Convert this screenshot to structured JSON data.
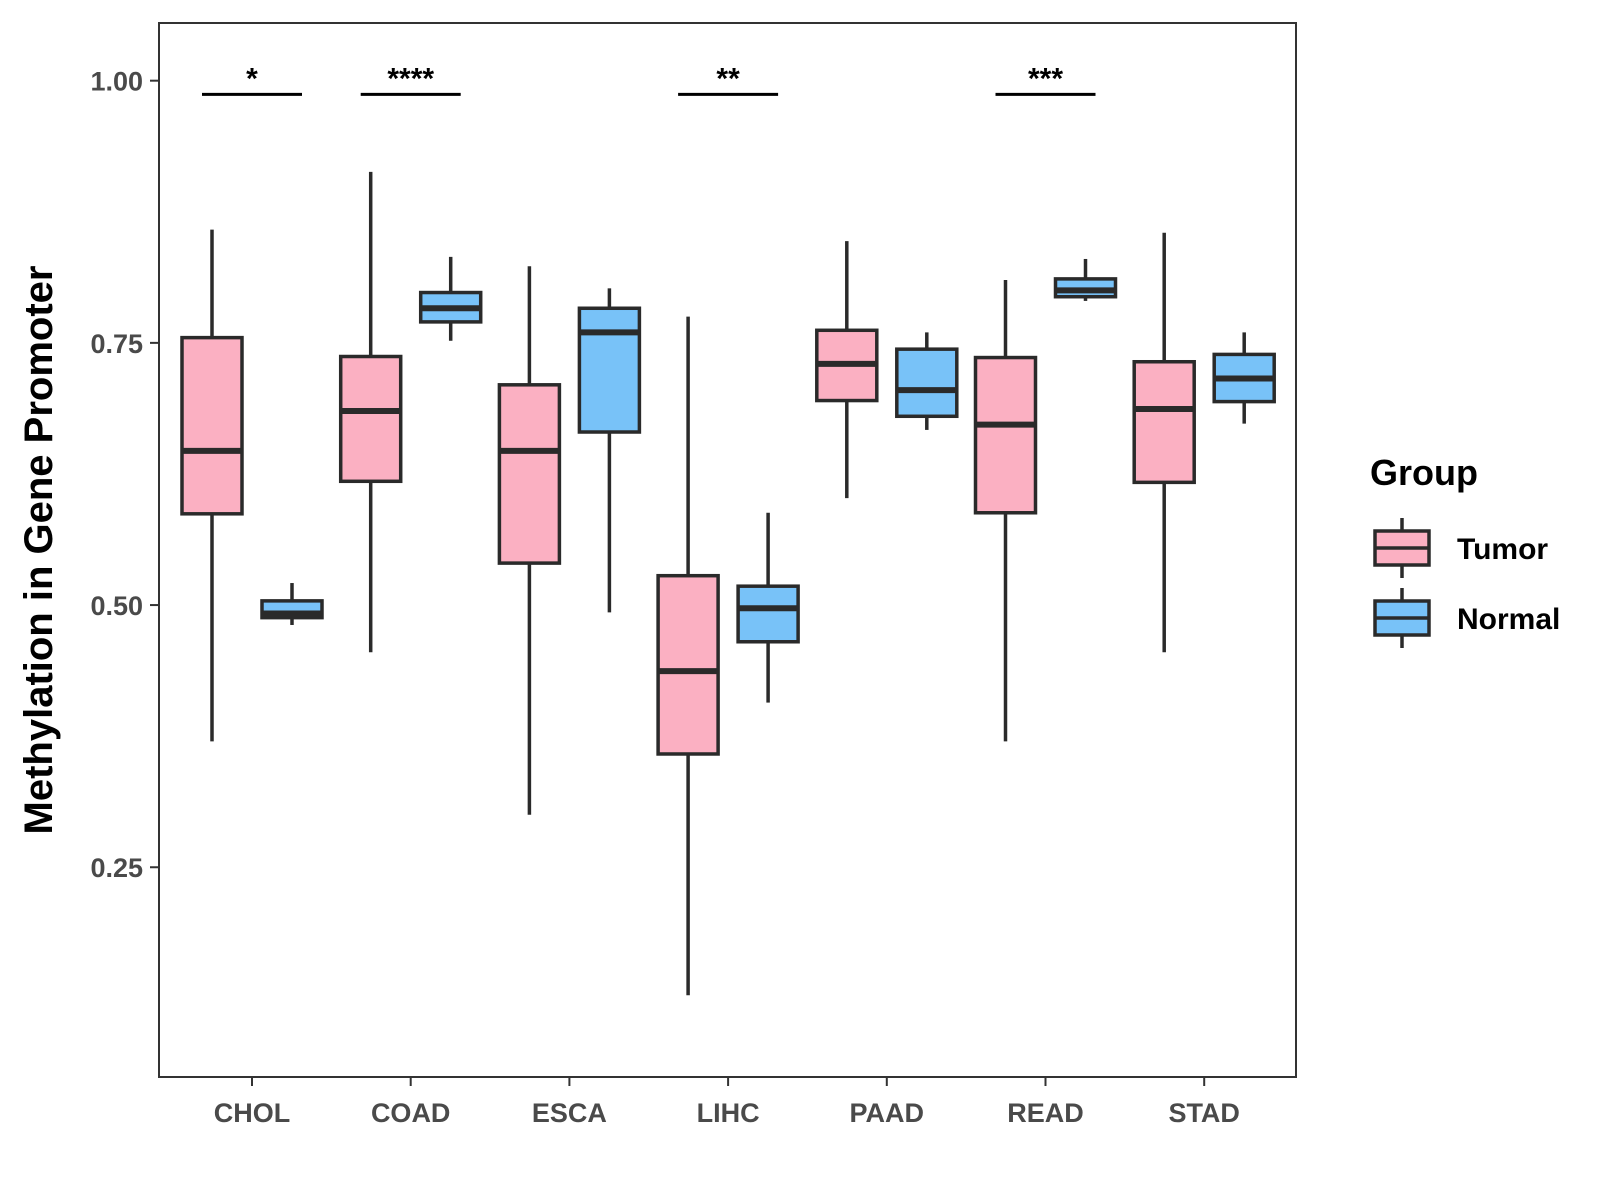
{
  "chart_data": {
    "type": "boxplot",
    "title": "",
    "xlabel": "",
    "ylabel": "Methylation in Gene Promoter",
    "ylim": [
      0.05,
      1.055
    ],
    "yticks": [
      "0.25",
      "0.50",
      "0.75",
      "1.00"
    ],
    "ytick_values": [
      0.25,
      0.5,
      0.75,
      1.0
    ],
    "grid": false,
    "categories": [
      "CHOL",
      "COAD",
      "ESCA",
      "LIHC",
      "PAAD",
      "READ",
      "STAD"
    ],
    "legend": {
      "title": "Group",
      "position": "right",
      "items": [
        {
          "label": "Tumor",
          "color": "#FBB0C2",
          "median": 0.5,
          "q1": 0.4,
          "q3": 0.6,
          "lo": 0.3,
          "hi": 0.7
        },
        {
          "label": "Normal",
          "color": "#78C2F8",
          "median": 0.5,
          "q1": 0.4,
          "q3": 0.6,
          "lo": 0.3,
          "hi": 0.7
        }
      ]
    },
    "series": [
      {
        "name": "Tumor",
        "color": "#FBB0C2",
        "boxes": [
          {
            "whisker_low": 0.37,
            "q1": 0.587,
            "median": 0.647,
            "q3": 0.755,
            "whisker_high": 0.858
          },
          {
            "whisker_low": 0.455,
            "q1": 0.618,
            "median": 0.685,
            "q3": 0.737,
            "whisker_high": 0.913
          },
          {
            "whisker_low": 0.3,
            "q1": 0.54,
            "median": 0.647,
            "q3": 0.71,
            "whisker_high": 0.823
          },
          {
            "whisker_low": 0.128,
            "q1": 0.358,
            "median": 0.437,
            "q3": 0.528,
            "whisker_high": 0.775
          },
          {
            "whisker_low": 0.602,
            "q1": 0.695,
            "median": 0.73,
            "q3": 0.762,
            "whisker_high": 0.847
          },
          {
            "whisker_low": 0.37,
            "q1": 0.588,
            "median": 0.672,
            "q3": 0.736,
            "whisker_high": 0.81
          },
          {
            "whisker_low": 0.455,
            "q1": 0.617,
            "median": 0.687,
            "q3": 0.732,
            "whisker_high": 0.855
          }
        ]
      },
      {
        "name": "Normal",
        "color": "#78C2F8",
        "boxes": [
          {
            "whisker_low": 0.481,
            "q1": 0.488,
            "median": 0.492,
            "q3": 0.504,
            "whisker_high": 0.521
          },
          {
            "whisker_low": 0.752,
            "q1": 0.77,
            "median": 0.783,
            "q3": 0.798,
            "whisker_high": 0.832
          },
          {
            "whisker_low": 0.493,
            "q1": 0.665,
            "median": 0.76,
            "q3": 0.783,
            "whisker_high": 0.802
          },
          {
            "whisker_low": 0.407,
            "q1": 0.465,
            "median": 0.497,
            "q3": 0.518,
            "whisker_high": 0.588
          },
          {
            "whisker_low": 0.667,
            "q1": 0.68,
            "median": 0.705,
            "q3": 0.744,
            "whisker_high": 0.76
          },
          {
            "whisker_low": 0.79,
            "q1": 0.794,
            "median": 0.8,
            "q3": 0.811,
            "whisker_high": 0.83
          },
          {
            "whisker_low": 0.673,
            "q1": 0.694,
            "median": 0.716,
            "q3": 0.739,
            "whisker_high": 0.76
          }
        ]
      }
    ],
    "annotations": [
      {
        "category": "CHOL",
        "label": "*",
        "y": 0.987
      },
      {
        "category": "COAD",
        "label": "****",
        "y": 0.987
      },
      {
        "category": "LIHC",
        "label": "**",
        "y": 0.987
      },
      {
        "category": "READ",
        "label": "***",
        "y": 0.987
      }
    ]
  }
}
